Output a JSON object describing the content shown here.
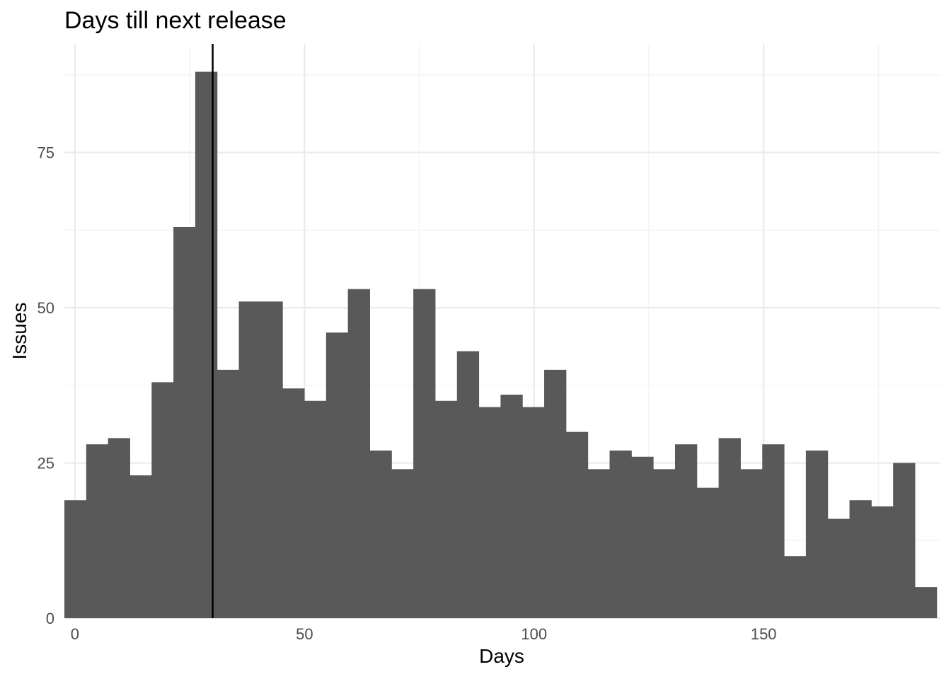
{
  "chart_data": {
    "type": "bar",
    "subtype": "histogram",
    "title": "Days till next release",
    "xlabel": "Days",
    "ylabel": "Issues",
    "xlim": [
      -2.3,
      188.5
    ],
    "ylim": [
      0,
      92.5
    ],
    "x_ticks": [
      0,
      50,
      100,
      150
    ],
    "y_ticks": [
      0,
      25,
      50,
      75
    ],
    "x_tick_labels": [
      "0",
      "50",
      "100",
      "150"
    ],
    "y_tick_labels": [
      "0",
      "25",
      "50",
      "75"
    ],
    "bin_width": 4.75,
    "bin_start": -2.3,
    "values": [
      19,
      28,
      29,
      23,
      38,
      63,
      88,
      40,
      51,
      51,
      37,
      35,
      46,
      53,
      27,
      24,
      53,
      35,
      43,
      34,
      36,
      34,
      40,
      30,
      24,
      27,
      26,
      24,
      28,
      21,
      29,
      24,
      28,
      10,
      27,
      16,
      19,
      18,
      25,
      5
    ],
    "reference_line": {
      "x": 30
    },
    "bar_color": "#595959",
    "grid": true,
    "legend": "none"
  }
}
